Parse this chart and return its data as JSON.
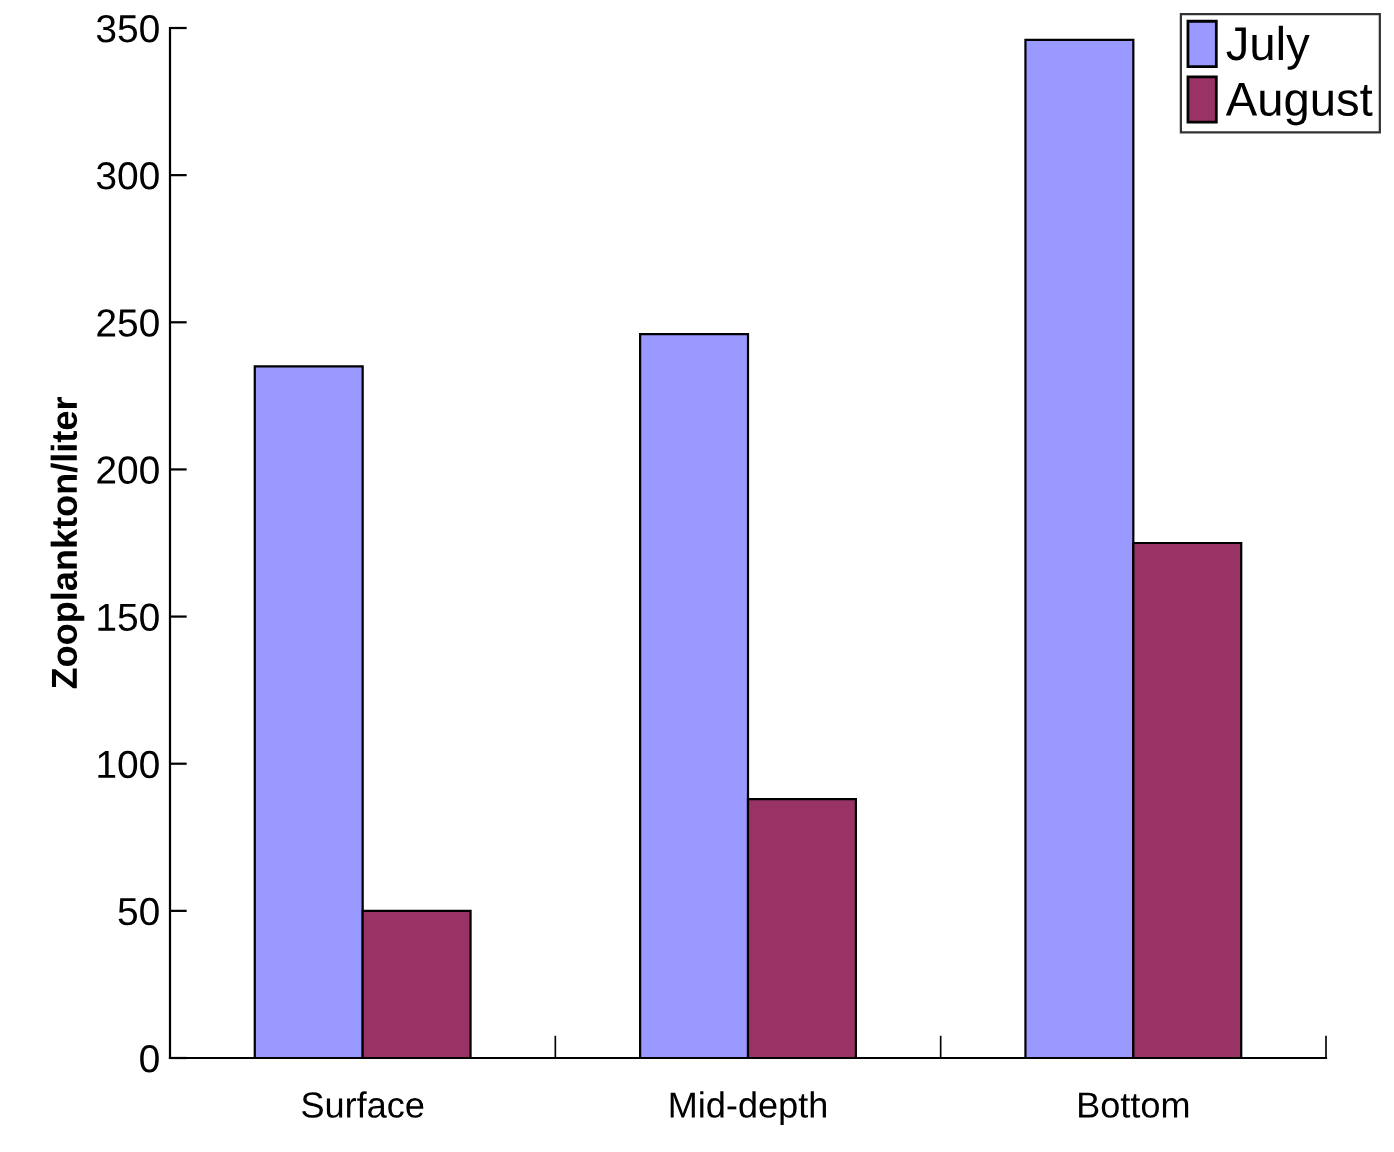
{
  "chart_data": {
    "type": "bar",
    "ylabel": "Zooplankton/liter",
    "categories": [
      "Surface",
      "Mid-depth",
      "Bottom"
    ],
    "series": [
      {
        "name": "July",
        "color": "#9999ff",
        "values": [
          235,
          246,
          346
        ]
      },
      {
        "name": "August",
        "color": "#993366",
        "values": [
          50,
          88,
          175
        ]
      }
    ],
    "ylim": [
      0,
      350
    ],
    "yticks": [
      0,
      50,
      100,
      150,
      200,
      250,
      300,
      350
    ],
    "grid": false,
    "legend": "top right"
  }
}
